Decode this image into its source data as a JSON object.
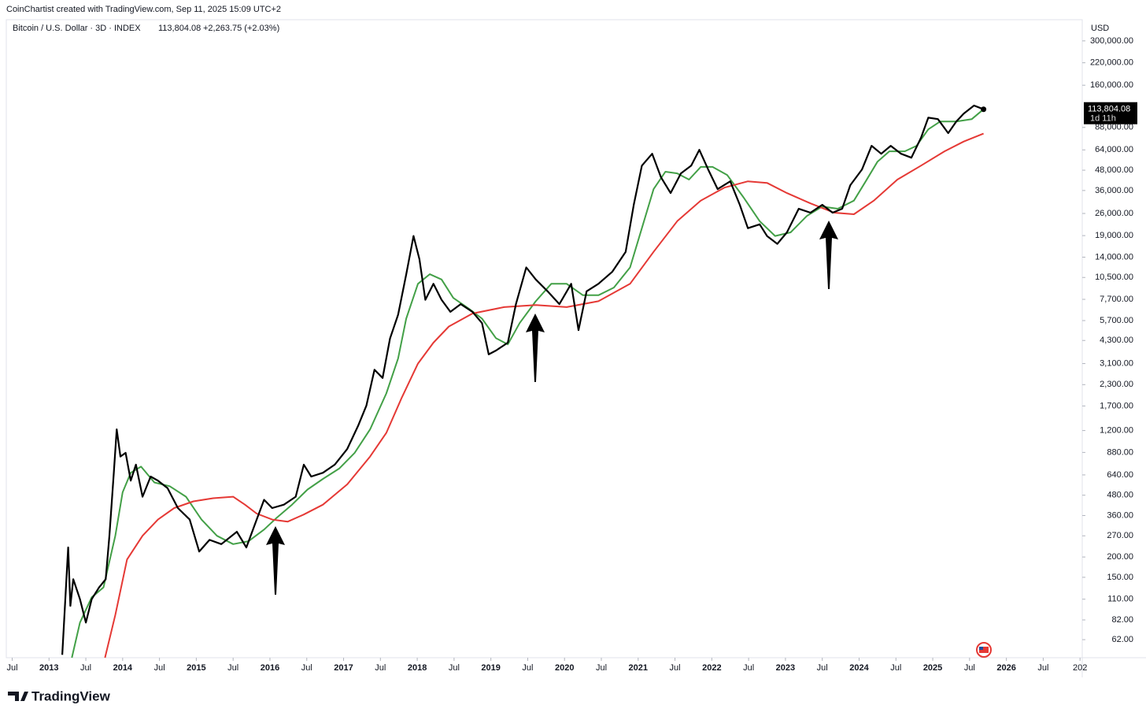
{
  "chart_data": {
    "type": "line",
    "credit": "CoinChartist created with TradingView.com, Sep 11, 2025 15:09 UTC+2",
    "symbol": "Bitcoin / U.S. Dollar · 3D · INDEX",
    "price": "113,804.08",
    "change": "+2,263.75 (+2.03%)",
    "currency": "USD",
    "countdown": "1d 11h",
    "brand": "TradingView",
    "log": true,
    "grid": false,
    "xlim": [
      2012.42,
      2027.03
    ],
    "ylim": [
      48,
      396000
    ],
    "xticks": [
      {
        "value": 2012.5,
        "label": "Jul"
      },
      2013,
      {
        "value": 2013.5,
        "label": "Jul"
      },
      2014,
      {
        "value": 2014.5,
        "label": "Jul"
      },
      2015,
      {
        "value": 2015.5,
        "label": "Jul"
      },
      2016,
      {
        "value": 2016.5,
        "label": "Jul"
      },
      2017,
      {
        "value": 2017.5,
        "label": "Jul"
      },
      2018,
      {
        "value": 2018.5,
        "label": "Jul"
      },
      2019,
      {
        "value": 2019.5,
        "label": "Jul"
      },
      2020,
      {
        "value": 2020.5,
        "label": "Jul"
      },
      2021,
      {
        "value": 2021.5,
        "label": "Jul"
      },
      2022,
      {
        "value": 2022.5,
        "label": "Jul"
      },
      2023,
      {
        "value": 2023.5,
        "label": "Jul"
      },
      2024,
      {
        "value": 2024.5,
        "label": "Jul"
      },
      2025,
      {
        "value": 2025.5,
        "label": "Jul"
      },
      2026,
      {
        "value": 2026.5,
        "label": "Jul"
      },
      {
        "value": 2027,
        "label": "202"
      }
    ],
    "yticks": [
      {
        "value": 300000,
        "label": "300,000.00"
      },
      {
        "value": 220000,
        "label": "220,000.00"
      },
      {
        "value": 160000,
        "label": "160,000.00"
      },
      {
        "value": 88000,
        "label": "88,000.00"
      },
      {
        "value": 64000,
        "label": "64,000.00"
      },
      {
        "value": 48000,
        "label": "48,000.00"
      },
      {
        "value": 36000,
        "label": "36,000.00"
      },
      {
        "value": 26000,
        "label": "26,000.00"
      },
      {
        "value": 19000,
        "label": "19,000.00"
      },
      {
        "value": 14000,
        "label": "14,000.00"
      },
      {
        "value": 10500,
        "label": "10,500.00"
      },
      {
        "value": 7700,
        "label": "7,700.00"
      },
      {
        "value": 5700,
        "label": "5,700.00"
      },
      {
        "value": 4300,
        "label": "4,300.00"
      },
      {
        "value": 3100,
        "label": "3,100.00"
      },
      {
        "value": 2300,
        "label": "2,300.00"
      },
      {
        "value": 1700,
        "label": "1,700.00"
      },
      {
        "value": 1200,
        "label": "1,200.00"
      },
      {
        "value": 880,
        "label": "880.00"
      },
      {
        "value": 640,
        "label": "640.00"
      },
      {
        "value": 480,
        "label": "480.00"
      },
      {
        "value": 360,
        "label": "360.00"
      },
      {
        "value": 270,
        "label": "270.00"
      },
      {
        "value": 200,
        "label": "200.00"
      },
      {
        "value": 150,
        "label": "150.00"
      },
      {
        "value": 110,
        "label": "110.00"
      },
      {
        "value": 82,
        "label": "82.00"
      },
      {
        "value": 62,
        "label": "62.00"
      }
    ],
    "series": [
      {
        "color": "#000000",
        "x": [
          2013.18,
          2013.26,
          2013.29,
          2013.33,
          2013.42,
          2013.5,
          2013.58,
          2013.68,
          2013.77,
          2013.82,
          2013.88,
          2013.92,
          2013.97,
          2014.04,
          2014.11,
          2014.18,
          2014.27,
          2014.38,
          2014.48,
          2014.61,
          2014.75,
          2014.91,
          2015.04,
          2015.18,
          2015.34,
          2015.55,
          2015.68,
          2015.82,
          2015.92,
          2016.03,
          2016.19,
          2016.35,
          2016.46,
          2016.56,
          2016.72,
          2016.88,
          2017.05,
          2017.2,
          2017.31,
          2017.42,
          2017.53,
          2017.63,
          2017.74,
          2017.85,
          2017.95,
          2018.03,
          2018.11,
          2018.22,
          2018.33,
          2018.45,
          2018.59,
          2018.75,
          2018.88,
          2018.97,
          2019.07,
          2019.23,
          2019.34,
          2019.48,
          2019.61,
          2019.77,
          2019.93,
          2020.09,
          2020.19,
          2020.3,
          2020.46,
          2020.65,
          2020.83,
          2020.94,
          2021.05,
          2021.19,
          2021.31,
          2021.44,
          2021.58,
          2021.72,
          2021.83,
          2021.95,
          2022.08,
          2022.25,
          2022.38,
          2022.49,
          2022.65,
          2022.75,
          2022.89,
          2023.02,
          2023.18,
          2023.34,
          2023.5,
          2023.64,
          2023.77,
          2023.88,
          2024.04,
          2024.17,
          2024.3,
          2024.43,
          2024.57,
          2024.71,
          2024.84,
          2024.94,
          2025.07,
          2025.21,
          2025.32,
          2025.42,
          2025.56,
          2025.69
        ],
        "values": [
          50,
          229,
          100,
          146,
          110,
          79,
          110,
          130,
          146,
          270,
          660,
          1220,
          830,
          875,
          590,
          740,
          470,
          625,
          590,
          530,
          400,
          340,
          216,
          255,
          240,
          286,
          229,
          340,
          450,
          400,
          420,
          470,
          740,
          625,
          660,
          740,
          925,
          1290,
          1710,
          2840,
          2530,
          4420,
          6200,
          10960,
          18900,
          13600,
          7650,
          9600,
          7650,
          6450,
          7200,
          6450,
          5500,
          3530,
          3730,
          4170,
          7200,
          12100,
          10200,
          8630,
          7200,
          9600,
          4980,
          8630,
          9600,
          11400,
          15100,
          29400,
          51200,
          60600,
          43400,
          34700,
          45900,
          51200,
          64100,
          48500,
          36700,
          41000,
          29400,
          21100,
          22300,
          18900,
          16900,
          19900,
          27800,
          26300,
          29400,
          26300,
          27800,
          38800,
          48500,
          67800,
          60600,
          67800,
          60600,
          57300,
          75900,
          101000,
          99000,
          81200,
          95600,
          107000,
          120000,
          113804.08
        ]
      },
      {
        "color": "#43a047",
        "x": [
          2013.31,
          2013.42,
          2013.58,
          2013.74,
          2013.9,
          2014.0,
          2014.11,
          2014.25,
          2014.43,
          2014.64,
          2014.86,
          2015.07,
          2015.28,
          2015.5,
          2015.71,
          2015.92,
          2016.08,
          2016.3,
          2016.51,
          2016.72,
          2016.94,
          2017.15,
          2017.36,
          2017.58,
          2017.74,
          2017.85,
          2018.01,
          2018.17,
          2018.33,
          2018.49,
          2018.7,
          2018.88,
          2019.07,
          2019.23,
          2019.39,
          2019.61,
          2019.82,
          2020.03,
          2020.25,
          2020.46,
          2020.67,
          2020.89,
          2021.05,
          2021.21,
          2021.37,
          2021.53,
          2021.69,
          2021.85,
          2022.01,
          2022.21,
          2022.43,
          2022.65,
          2022.86,
          2023.07,
          2023.29,
          2023.5,
          2023.71,
          2023.93,
          2024.09,
          2024.25,
          2024.41,
          2024.62,
          2024.78,
          2024.94,
          2025.1,
          2025.32,
          2025.53,
          2025.69
        ],
        "values": [
          48,
          79,
          113,
          130,
          270,
          500,
          660,
          720,
          575,
          545,
          470,
          340,
          270,
          240,
          250,
          295,
          345,
          420,
          520,
          605,
          700,
          875,
          1220,
          2030,
          3330,
          5860,
          9600,
          11000,
          10200,
          7860,
          6750,
          5860,
          4440,
          4070,
          5500,
          7500,
          9600,
          9600,
          8160,
          8160,
          9100,
          12100,
          21100,
          36700,
          47000,
          45900,
          42000,
          50300,
          50300,
          44800,
          32700,
          23300,
          18900,
          19900,
          25100,
          28700,
          27800,
          31200,
          41000,
          54200,
          62700,
          62700,
          67800,
          85600,
          95600,
          95600,
          99000,
          113800
        ]
      },
      {
        "color": "#e53935",
        "x": [
          2013.76,
          2013.9,
          2014.06,
          2014.27,
          2014.48,
          2014.7,
          2014.96,
          2015.23,
          2015.5,
          2015.66,
          2015.82,
          2016.03,
          2016.24,
          2016.46,
          2016.72,
          2017.05,
          2017.36,
          2017.58,
          2017.79,
          2018.01,
          2018.22,
          2018.43,
          2018.75,
          2019.18,
          2019.61,
          2020.03,
          2020.46,
          2020.89,
          2021.21,
          2021.53,
          2021.85,
          2022.17,
          2022.49,
          2022.75,
          2023.02,
          2023.34,
          2023.66,
          2023.93,
          2024.2,
          2024.52,
          2024.84,
          2025.16,
          2025.42,
          2025.69
        ],
        "values": [
          48,
          88,
          193,
          270,
          340,
          400,
          440,
          460,
          470,
          420,
          370,
          340,
          330,
          365,
          420,
          560,
          830,
          1160,
          1910,
          3100,
          4170,
          5240,
          6300,
          6900,
          7100,
          6900,
          7500,
          9600,
          15100,
          23300,
          31200,
          37500,
          41000,
          40100,
          34700,
          30000,
          26300,
          25700,
          31200,
          42000,
          51200,
          62700,
          72000,
          80600
        ]
      }
    ]
  }
}
